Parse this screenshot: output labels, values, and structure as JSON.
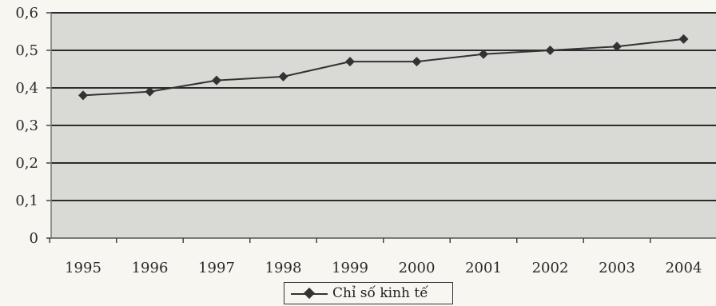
{
  "chart_data": {
    "type": "line",
    "categories": [
      "1995",
      "1996",
      "1997",
      "1998",
      "1999",
      "2000",
      "2001",
      "2002",
      "2003",
      "2004"
    ],
    "series": [
      {
        "name": "Chỉ số kinh tế",
        "values": [
          0.38,
          0.39,
          0.42,
          0.43,
          0.47,
          0.47,
          0.49,
          0.5,
          0.51,
          0.53
        ]
      }
    ],
    "y_ticks": [
      "0",
      "0,1",
      "0,2",
      "0,3",
      "0,4",
      "0,5",
      "0,6"
    ],
    "ylim": [
      0,
      0.6
    ],
    "grid": true,
    "legend_position": "bottom",
    "colors": {
      "line": "#333333",
      "grid": "#2b2b2b",
      "plot_bg": "#d9d9d6"
    }
  }
}
